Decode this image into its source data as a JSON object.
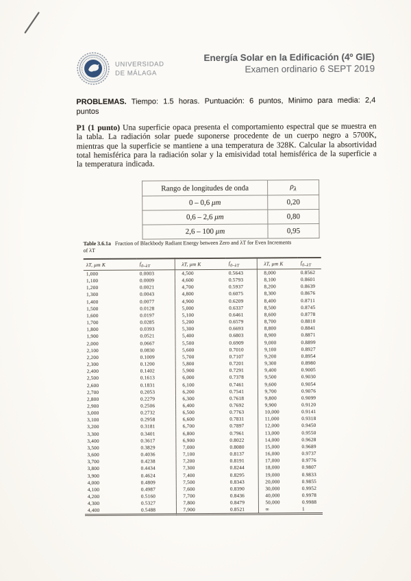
{
  "header": {
    "logo_line1": "UNIVERSIDAD",
    "logo_line2": "DE MÁLAGA",
    "title_line1": "Energía Solar en la Edificación (4º GIE)",
    "title_line2": "Examen ordinario 6 SEPT 2019"
  },
  "problems": {
    "label": "PROBLEMAS.",
    "text": " Tiempo: 1.5 horas. Puntuación: 6 puntos, Minimo para media: 2,4 puntos"
  },
  "p1": {
    "label": "P1 (1 punto)",
    "text": " Una superficie opaca presenta el comportamiento espectral que se muestra en la tabla. La radiación solar puede suponerse procedente de un cuerpo negro a 5700K, mientras que la superficie se mantiene a una temperatura de 328K. Calcular la absortividad total hemisférica para la radiación solar y la emisividad total hemisférica de la superficie a la temperatura indicada."
  },
  "spectral_table": {
    "header_range": "Rango de longitudes de onda",
    "header_rho_main": "ρ",
    "header_rho_sub": "λ",
    "rows": [
      {
        "range": "0 – 0,6",
        "unit": "μm",
        "rho": "0,20"
      },
      {
        "range": "0,6 – 2,6",
        "unit": "μm",
        "rho": "0,80"
      },
      {
        "range": "2,6 – 100",
        "unit": "μm",
        "rho": "0,95"
      }
    ]
  },
  "blackbody_table": {
    "caption_label": "Table 3.6.1a",
    "caption_line1": "Fraction of Blackbody Radiant Energy between Zero and λT for Even Increments",
    "caption_line2": "of λT",
    "col_lambda_header": "λT, μm K",
    "col_f_main": "f",
    "col_f_sub": "0–λT",
    "rows": [
      [
        "1,000",
        "0.0003",
        "4,500",
        "0.5643",
        "8,000",
        "0.8562"
      ],
      [
        "1,100",
        "0.0009",
        "4,600",
        "0.5793",
        "8,100",
        "0.8601"
      ],
      [
        "1,200",
        "0.0021",
        "4,700",
        "0.5937",
        "8,200",
        "0.8639"
      ],
      [
        "1,300",
        "0.0043",
        "4,800",
        "0.6075",
        "8,300",
        "0.8676"
      ],
      [
        "1,400",
        "0.0077",
        "4,900",
        "0.6209",
        "8,400",
        "0.8711"
      ],
      [
        "1,500",
        "0.0128",
        "5,000",
        "0.6337",
        "8,500",
        "0.8745"
      ],
      [
        "1,600",
        "0.0197",
        "5,100",
        "0.6461",
        "8,600",
        "0.8778"
      ],
      [
        "1,700",
        "0.0285",
        "5,200",
        "0.6579",
        "8,700",
        "0.8810"
      ],
      [
        "1,800",
        "0.0393",
        "5,300",
        "0.6693",
        "8,800",
        "0.8841"
      ],
      [
        "1,900",
        "0.0521",
        "5,400",
        "0.6803",
        "8,900",
        "0.8871"
      ],
      [
        "2,000",
        "0.0667",
        "5,500",
        "0.6909",
        "9,000",
        "0.8899"
      ],
      [
        "2,100",
        "0.0830",
        "5,600",
        "0.7010",
        "9,100",
        "0.8927"
      ],
      [
        "2,200",
        "0.1009",
        "5,700",
        "0.7107",
        "9,200",
        "0.8954"
      ],
      [
        "2,300",
        "0.1200",
        "5,800",
        "0.7201",
        "9,300",
        "0.8980"
      ],
      [
        "2,400",
        "0.1402",
        "5,900",
        "0.7291",
        "9,400",
        "0.9005"
      ],
      [
        "2,500",
        "0.1613",
        "6,000",
        "0.7378",
        "9,500",
        "0.9030"
      ],
      [
        "2,600",
        "0.1831",
        "6,100",
        "0.7461",
        "9,600",
        "0.9054"
      ],
      [
        "2,700",
        "0.2053",
        "6,200",
        "0.7541",
        "9,700",
        "0.9076"
      ],
      [
        "2,800",
        "0.2279",
        "6,300",
        "0.7618",
        "9,800",
        "0.9099"
      ],
      [
        "2,900",
        "0.2506",
        "6,400",
        "0.7692",
        "9,900",
        "0.9120"
      ],
      [
        "3,000",
        "0.2732",
        "6,500",
        "0.7763",
        "10,000",
        "0.9141"
      ],
      [
        "3,100",
        "0.2958",
        "6,600",
        "0.7831",
        "11,000",
        "0.9318"
      ],
      [
        "3,200",
        "0.3181",
        "6,700",
        "0.7897",
        "12,000",
        "0.9450"
      ],
      [
        "3,300",
        "0.3401",
        "6,800",
        "0.7961",
        "13,000",
        "0.9550"
      ],
      [
        "3,400",
        "0.3617",
        "6,900",
        "0.8022",
        "14,000",
        "0.9628"
      ],
      [
        "3,500",
        "0.3829",
        "7,000",
        "0.8080",
        "15,000",
        "0.9689"
      ],
      [
        "3,600",
        "0.4036",
        "7,100",
        "0.8137",
        "16,000",
        "0.9737"
      ],
      [
        "3,700",
        "0.4238",
        "7,200",
        "0.8191",
        "17,000",
        "0.9776"
      ],
      [
        "3,800",
        "0.4434",
        "7,300",
        "0.8244",
        "18,000",
        "0.9807"
      ],
      [
        "3,900",
        "0.4624",
        "7,400",
        "0.8295",
        "19,000",
        "0.9833"
      ],
      [
        "4,000",
        "0.4809",
        "7,500",
        "0.8343",
        "20,000",
        "0.9855"
      ],
      [
        "4,100",
        "0.4987",
        "7,600",
        "0.8390",
        "30,000",
        "0.9952"
      ],
      [
        "4,200",
        "0.5160",
        "7,700",
        "0.8436",
        "40,000",
        "0.9978"
      ],
      [
        "4,300",
        "0.5327",
        "7,800",
        "0.8479",
        "50,000",
        "0.9988"
      ],
      [
        "4,400",
        "0.5488",
        "7,900",
        "0.8521",
        "∞",
        "1"
      ]
    ]
  },
  "colors": {
    "seal_navy": "#33517a",
    "page_bg": "#fbf9f4",
    "title_gray": "#5d6165",
    "logo_gray": "#9aa0a7"
  }
}
